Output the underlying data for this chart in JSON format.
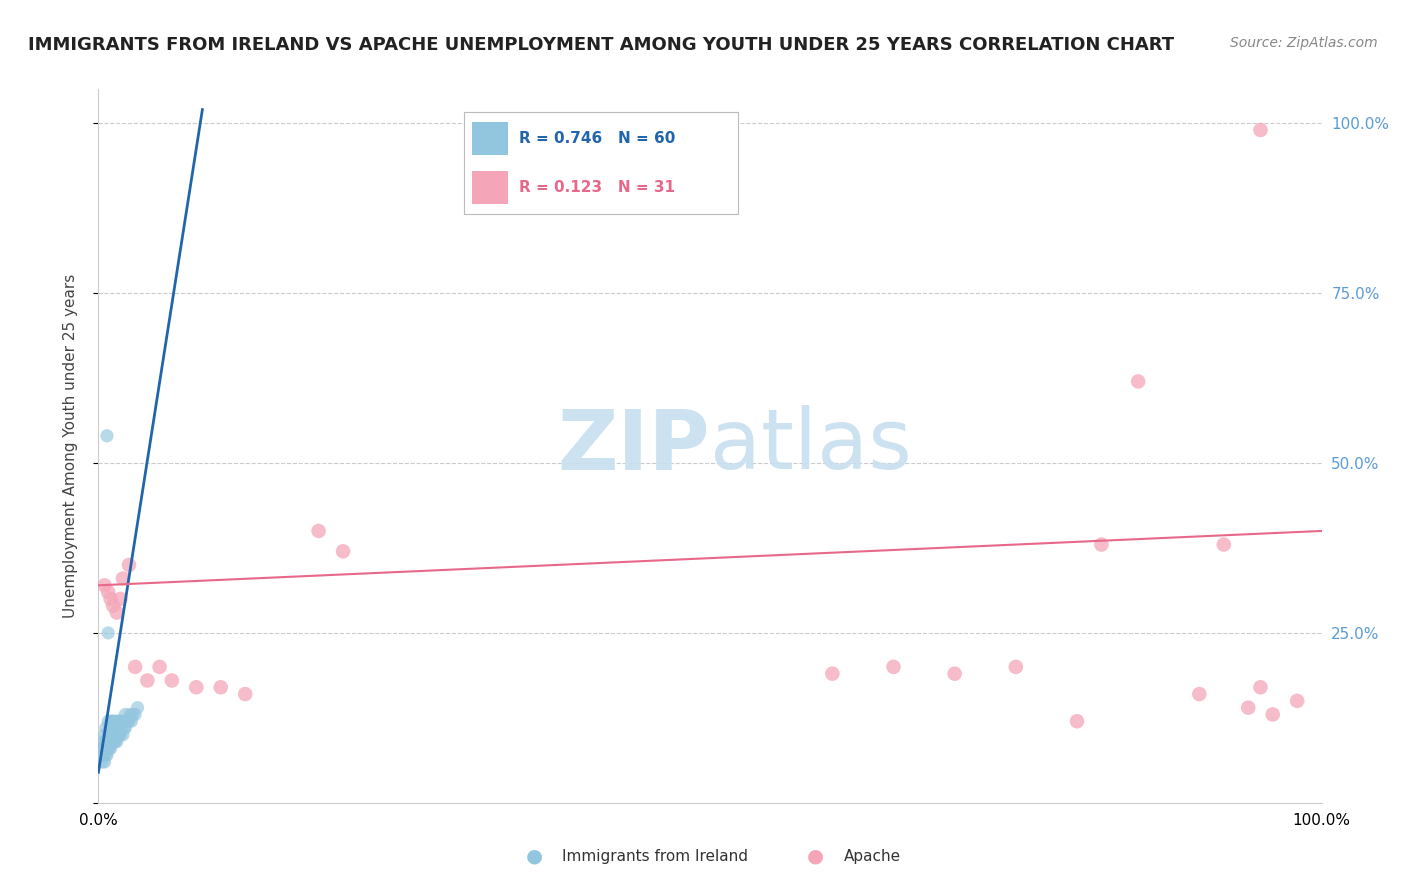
{
  "title": "IMMIGRANTS FROM IRELAND VS APACHE UNEMPLOYMENT AMONG YOUTH UNDER 25 YEARS CORRELATION CHART",
  "source": "Source: ZipAtlas.com",
  "ylabel": "Unemployment Among Youth under 25 years",
  "legend_blue_R": "0.746",
  "legend_blue_N": "60",
  "legend_pink_R": "0.123",
  "legend_pink_N": "31",
  "legend_label_blue": "Immigrants from Ireland",
  "legend_label_pink": "Apache",
  "blue_color": "#92c5de",
  "pink_color": "#f4a6b8",
  "blue_line_color": "#2166ac",
  "pink_line_color": "#e8688a",
  "watermark_color": "#c8dff0",
  "blue_scatter_x": [
    0.003,
    0.003,
    0.004,
    0.004,
    0.005,
    0.005,
    0.005,
    0.006,
    0.006,
    0.006,
    0.007,
    0.007,
    0.007,
    0.007,
    0.008,
    0.008,
    0.008,
    0.008,
    0.009,
    0.009,
    0.009,
    0.01,
    0.01,
    0.01,
    0.01,
    0.011,
    0.011,
    0.011,
    0.012,
    0.012,
    0.012,
    0.013,
    0.013,
    0.013,
    0.014,
    0.014,
    0.015,
    0.015,
    0.015,
    0.016,
    0.016,
    0.017,
    0.017,
    0.018,
    0.018,
    0.019,
    0.02,
    0.02,
    0.021,
    0.022,
    0.022,
    0.023,
    0.024,
    0.025,
    0.026,
    0.027,
    0.028,
    0.03,
    0.032,
    0.008
  ],
  "blue_scatter_y": [
    0.06,
    0.08,
    0.07,
    0.09,
    0.06,
    0.08,
    0.1,
    0.07,
    0.09,
    0.11,
    0.07,
    0.08,
    0.09,
    0.54,
    0.08,
    0.09,
    0.1,
    0.12,
    0.08,
    0.09,
    0.11,
    0.08,
    0.09,
    0.1,
    0.12,
    0.09,
    0.1,
    0.12,
    0.09,
    0.1,
    0.12,
    0.09,
    0.1,
    0.12,
    0.09,
    0.11,
    0.09,
    0.1,
    0.12,
    0.1,
    0.12,
    0.1,
    0.12,
    0.1,
    0.12,
    0.11,
    0.1,
    0.12,
    0.11,
    0.11,
    0.13,
    0.12,
    0.12,
    0.12,
    0.13,
    0.12,
    0.13,
    0.13,
    0.14,
    0.25
  ],
  "pink_scatter_x": [
    0.005,
    0.008,
    0.01,
    0.012,
    0.015,
    0.018,
    0.02,
    0.025,
    0.03,
    0.04,
    0.05,
    0.06,
    0.08,
    0.1,
    0.12,
    0.18,
    0.2,
    0.6,
    0.65,
    0.7,
    0.75,
    0.8,
    0.82,
    0.85,
    0.9,
    0.92,
    0.94,
    0.95,
    0.96,
    0.98,
    0.95
  ],
  "pink_scatter_y": [
    0.32,
    0.31,
    0.3,
    0.29,
    0.28,
    0.3,
    0.33,
    0.35,
    0.2,
    0.18,
    0.2,
    0.18,
    0.17,
    0.17,
    0.16,
    0.4,
    0.37,
    0.19,
    0.2,
    0.19,
    0.2,
    0.12,
    0.38,
    0.62,
    0.16,
    0.38,
    0.14,
    0.99,
    0.13,
    0.15,
    0.17
  ],
  "blue_line_x": [
    0.0,
    0.085
  ],
  "blue_line_y": [
    0.045,
    1.02
  ],
  "pink_line_x": [
    0.0,
    1.0
  ],
  "pink_line_y": [
    0.32,
    0.4
  ],
  "xlim": [
    0.0,
    1.0
  ],
  "ylim": [
    0.0,
    1.05
  ],
  "yticks": [
    0.0,
    0.25,
    0.5,
    0.75,
    1.0
  ],
  "ytick_labels": [
    "",
    "25.0%",
    "50.0%",
    "75.0%",
    "100.0%"
  ],
  "grid_color": "#cccccc",
  "spine_color": "#cccccc",
  "tick_color": "#5b9bd5",
  "title_fontsize": 13,
  "source_fontsize": 10,
  "ylabel_fontsize": 11,
  "tick_fontsize": 11
}
